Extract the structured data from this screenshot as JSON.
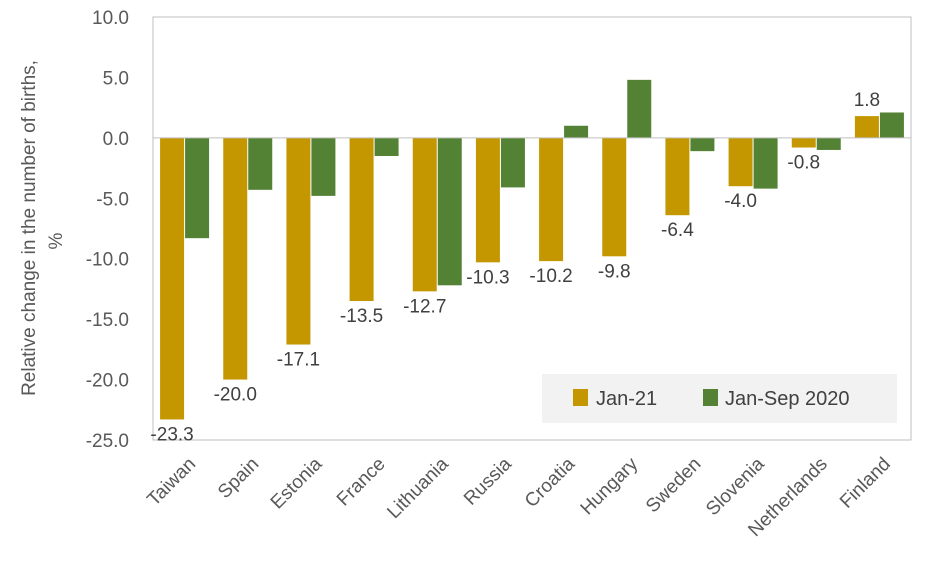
{
  "chart_data": {
    "type": "bar",
    "title": "",
    "xlabel": "",
    "ylabel_line1": "Relative change in the number of births,",
    "ylabel_line2": "%",
    "ylim": [
      -25,
      10
    ],
    "ytick_values": [
      10,
      5,
      0,
      -5,
      -10,
      -15,
      -20,
      -25
    ],
    "ytick_labels": [
      "10.0",
      "5.0",
      "0.0",
      "-5.0",
      "-10.0",
      "-15.0",
      "-20.0",
      "-25.0"
    ],
    "grid": false,
    "legend_position": "bottom-right",
    "categories": [
      "Taiwan",
      "Spain",
      "Estonia",
      "France",
      "Lithuania",
      "Russia",
      "Croatia",
      "Hungary",
      "Sweden",
      "Slovenia",
      "Netherlands",
      "Finland"
    ],
    "series": [
      {
        "name": "Jan-21",
        "color": "#c49700",
        "values": [
          -23.3,
          -20.0,
          -17.1,
          -13.5,
          -12.7,
          -10.3,
          -10.2,
          -9.8,
          -6.4,
          -4.0,
          -0.8,
          1.8
        ],
        "labels": [
          "-23.3",
          "-20.0",
          "-17.1",
          "-13.5",
          "-12.7",
          "-10.3",
          "-10.2",
          "-9.8",
          "-6.4",
          "-4.0",
          "-0.8",
          "1.8"
        ]
      },
      {
        "name": "Jan-Sep 2020",
        "color": "#548235",
        "values": [
          -8.3,
          -4.3,
          -4.8,
          -1.5,
          -12.2,
          -4.1,
          1.0,
          4.8,
          -1.1,
          -4.2,
          -1.0,
          2.1
        ]
      }
    ]
  }
}
